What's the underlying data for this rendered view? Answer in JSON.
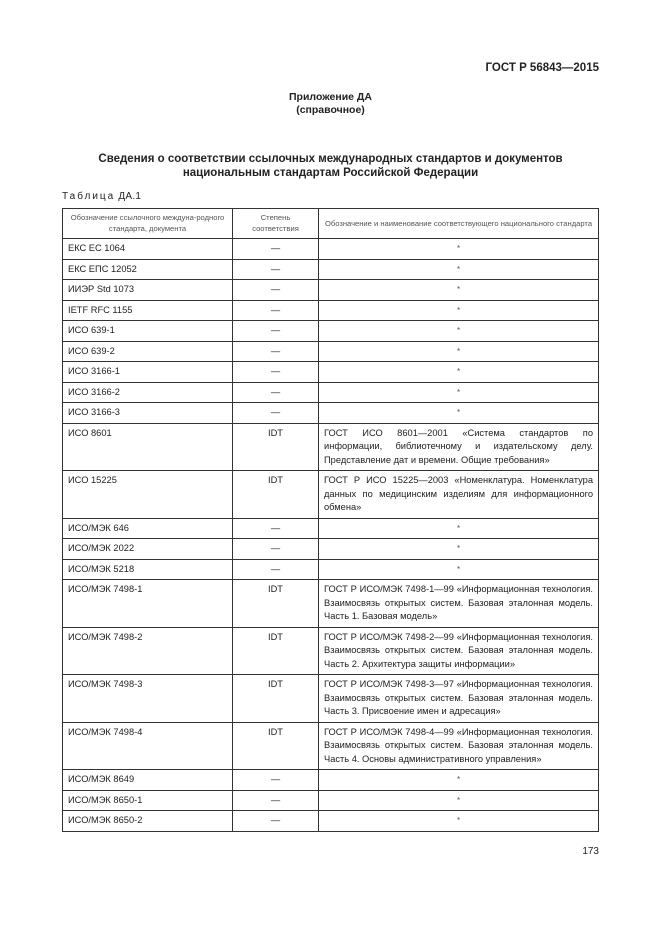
{
  "header": {
    "doc_id": "ГОСТ Р 56843—2015"
  },
  "appendix": {
    "title": "Приложение ДА",
    "subtitle": "(справочное)"
  },
  "section_title_line1": "Сведения о соответствии ссылочных международных стандартов и документов",
  "section_title_line2": "национальным стандартам Российской Федерации",
  "table_caption_word": "Таблица",
  "table_caption_num": "ДА.1",
  "table": {
    "headers": [
      "Обозначение ссылочного междуна-родного стандарта, документа",
      "Степень соответствия",
      "Обозначение и наименование соответствующего национального стандарта"
    ],
    "rows": [
      {
        "ref": "ЕКС ЕС 1064",
        "degree": "—",
        "national": "*"
      },
      {
        "ref": "ЕКС ЕПС 12052",
        "degree": "—",
        "national": "*"
      },
      {
        "ref": "ИИЭР Std 1073",
        "degree": "—",
        "national": "*"
      },
      {
        "ref": "IETF RFC 1155",
        "degree": "—",
        "national": "*"
      },
      {
        "ref": "ИСО 639-1",
        "degree": "—",
        "national": "*"
      },
      {
        "ref": "ИСО 639-2",
        "degree": "—",
        "national": "*"
      },
      {
        "ref": "ИСО 3166-1",
        "degree": "—",
        "national": "*"
      },
      {
        "ref": "ИСО 3166-2",
        "degree": "—",
        "national": "*"
      },
      {
        "ref": "ИСО 3166-3",
        "degree": "—",
        "national": "*"
      },
      {
        "ref": "ИСО 8601",
        "degree": "IDT",
        "national": "ГОСТ ИСО 8601—2001 «Система стандартов по информации, библиотечному и издательскому делу. Представление дат и времени. Общие требования»"
      },
      {
        "ref": "ИСО 15225",
        "degree": "IDT",
        "national": "ГОСТ Р ИСО 15225—2003 «Номенклатура. Номенклатура данных по медицинским изделиям для информационного обмена»"
      },
      {
        "ref": "ИСО/МЭК 646",
        "degree": "—",
        "national": "*"
      },
      {
        "ref": "ИСО/МЭК 2022",
        "degree": "—",
        "national": "*"
      },
      {
        "ref": "ИСО/МЭК 5218",
        "degree": "—",
        "national": "*"
      },
      {
        "ref": "ИСО/МЭК 7498-1",
        "degree": "IDT",
        "national": "ГОСТ Р ИСО/МЭК 7498-1—99 «Информационная технология. Взаимосвязь открытых систем. Базовая эталонная модель. Часть 1. Базовая модель»"
      },
      {
        "ref": "ИСО/МЭК 7498-2",
        "degree": "IDT",
        "national": "ГОСТ Р ИСО/МЭК 7498-2—99 «Информационная технология. Взаимосвязь открытых систем. Базовая эталонная модель. Часть 2. Архитектура защиты информации»"
      },
      {
        "ref": "ИСО/МЭК 7498-3",
        "degree": "IDT",
        "national": "ГОСТ Р ИСО/МЭК 7498-3—97 «Информационная технология. Взаимосвязь открытых систем. Базовая эталонная модель. Часть 3. Присвоение имен и адресация»"
      },
      {
        "ref": "ИСО/МЭК 7498-4",
        "degree": "IDT",
        "national": "ГОСТ Р ИСО/МЭК 7498-4—99 «Информационная технология. Взаимосвязь открытых систем. Базовая эталонная модель. Часть 4. Основы административного управления»"
      },
      {
        "ref": "ИСО/МЭК 8649",
        "degree": "—",
        "national": "*"
      },
      {
        "ref": "ИСО/МЭК 8650-1",
        "degree": "—",
        "national": "*"
      },
      {
        "ref": "ИСО/МЭК 8650-2",
        "degree": "—",
        "national": "*"
      }
    ]
  },
  "page_number": "173"
}
